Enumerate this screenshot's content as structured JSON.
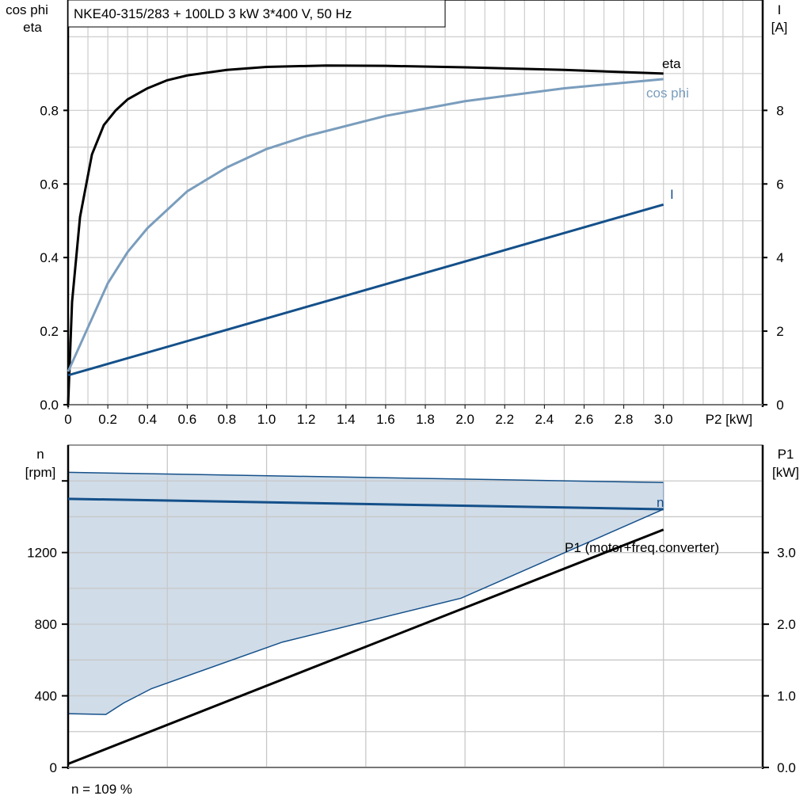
{
  "chart_data": [
    {
      "type": "line",
      "title": "NKE40-315/283 + 100LD   3 kW   3*400 V, 50 Hz",
      "xlabel": "P2 [kW]",
      "ylabel_left": [
        "cos phi",
        "eta"
      ],
      "ylabel_right": [
        "I",
        "[A]"
      ],
      "xlim": [
        0,
        3.5
      ],
      "ylim_left": [
        0,
        1.1
      ],
      "ylim_right": [
        0,
        11
      ],
      "x_ticks": [
        "0",
        "0.2",
        "0.4",
        "0.6",
        "0.8",
        "1.0",
        "1.2",
        "1.4",
        "1.6",
        "1.8",
        "2.0",
        "2.2",
        "2.4",
        "2.6",
        "2.8",
        "3.0"
      ],
      "x_tick_values": [
        0,
        0.2,
        0.4,
        0.6,
        0.8,
        1.0,
        1.2,
        1.4,
        1.6,
        1.8,
        2.0,
        2.2,
        2.4,
        2.6,
        2.8,
        3.0
      ],
      "y_left_ticks": [
        "0.0",
        "0.2",
        "0.4",
        "0.6",
        "0.8"
      ],
      "y_left_tick_values": [
        0,
        0.2,
        0.4,
        0.6,
        0.8
      ],
      "y_right_ticks": [
        "0",
        "2",
        "4",
        "6",
        "8"
      ],
      "y_right_tick_values": [
        0,
        2,
        4,
        6,
        8
      ],
      "grid": true,
      "series": [
        {
          "name": "eta",
          "axis": "left",
          "color": "#000000",
          "x": [
            0,
            0.02,
            0.06,
            0.12,
            0.18,
            0.24,
            0.3,
            0.4,
            0.5,
            0.6,
            0.8,
            1.0,
            1.3,
            1.6,
            2.0,
            2.5,
            3.0
          ],
          "y": [
            0,
            0.28,
            0.51,
            0.68,
            0.76,
            0.8,
            0.83,
            0.86,
            0.882,
            0.895,
            0.91,
            0.918,
            0.922,
            0.921,
            0.917,
            0.91,
            0.9
          ]
        },
        {
          "name": "cos phi",
          "axis": "left",
          "color": "#7a9dbd",
          "x": [
            0,
            0.1,
            0.2,
            0.3,
            0.4,
            0.6,
            0.8,
            1.0,
            1.2,
            1.6,
            2.0,
            2.5,
            3.0
          ],
          "y": [
            0.09,
            0.21,
            0.33,
            0.415,
            0.48,
            0.58,
            0.645,
            0.695,
            0.73,
            0.785,
            0.825,
            0.86,
            0.885
          ]
        },
        {
          "name": "I",
          "axis": "right",
          "color": "#14508a",
          "x": [
            0,
            3.0
          ],
          "y": [
            0.8,
            5.44
          ]
        }
      ]
    },
    {
      "type": "line",
      "xlim": [
        0,
        3.5
      ],
      "ylabel_left": [
        "n",
        "[rpm]"
      ],
      "ylabel_right": [
        "P1",
        "[kW]"
      ],
      "ylim_left": [
        0,
        1800
      ],
      "ylim_right": [
        0,
        4.5
      ],
      "x_grid_values": [
        0.5,
        1.0,
        1.5,
        2.0,
        2.5,
        3.0
      ],
      "y_left_ticks": [
        "0",
        "400",
        "800",
        "1200"
      ],
      "y_left_tick_values": [
        0,
        400,
        800,
        1200
      ],
      "y_right_ticks": [
        "0.0",
        "1.0",
        "2.0",
        "3.0"
      ],
      "y_right_tick_values": [
        0,
        1,
        2,
        3
      ],
      "grid": true,
      "footnote": "n = 109 %",
      "operating_area": {
        "color": "#d0dce8",
        "edge_color": "#14508a",
        "upper": {
          "x": [
            0,
            3.0
          ],
          "y": [
            1648,
            1591
          ]
        },
        "lower": {
          "x": [
            0,
            0.19,
            0.28,
            0.42,
            1.08,
            1.98,
            3.0
          ],
          "y": [
            300,
            296,
            360,
            440,
            700,
            945,
            1442
          ]
        }
      },
      "series": [
        {
          "name": "n",
          "axis": "left",
          "color": "#14508a",
          "x": [
            0,
            3.0
          ],
          "y": [
            1500,
            1442
          ]
        },
        {
          "name": "P1 (motor+freq.converter)",
          "axis": "right",
          "color": "#000000",
          "x": [
            0,
            3.0
          ],
          "y": [
            0.05,
            3.32
          ]
        }
      ]
    }
  ]
}
